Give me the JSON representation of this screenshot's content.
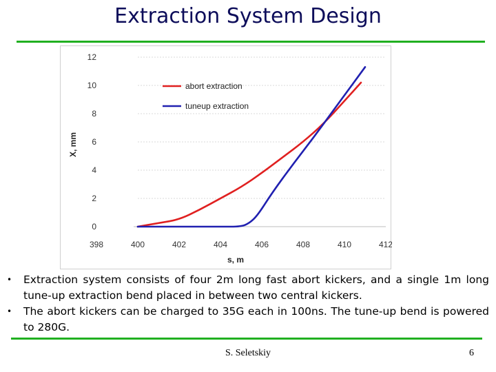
{
  "slide": {
    "title": "Extraction System Design",
    "bullets": [
      "Extraction system consists of four 2m long fast abort kickers, and a single 1m long tune-up extraction bend placed in between two central kickers.",
      "The abort kickers can be charged to 35G each in 100ns. The tune-up bend is powered to 280G."
    ],
    "bullet_glyph": "•",
    "footer_author": "S. Seletskiy",
    "page_number": "6",
    "accent_color": "#20b020",
    "title_color": "#0d0d5a"
  },
  "chart_data": {
    "type": "line",
    "xlabel": "s, m",
    "ylabel": "X, mm",
    "xlim": [
      398,
      412
    ],
    "ylim": [
      0,
      12
    ],
    "xticks": [
      398,
      400,
      402,
      404,
      406,
      408,
      410,
      412
    ],
    "yticks": [
      0,
      2,
      4,
      6,
      8,
      10,
      12
    ],
    "grid": "horizontal dashed",
    "legend_position": "top-left inside",
    "series": [
      {
        "name": "abort extraction",
        "color": "#e02020",
        "x": [
          400.0,
          401.0,
          402.0,
          403.0,
          404.0,
          405.0,
          406.0,
          407.0,
          408.0,
          409.0,
          410.0,
          410.8
        ],
        "y": [
          0.0,
          0.25,
          0.5,
          1.2,
          2.0,
          2.8,
          3.8,
          4.9,
          6.0,
          7.3,
          8.9,
          10.2
        ]
      },
      {
        "name": "tuneup extraction",
        "color": "#2020b0",
        "x": [
          400.0,
          401.0,
          402.0,
          403.0,
          404.0,
          405.0,
          405.4,
          405.8,
          406.5,
          407.5,
          408.5,
          409.5,
          410.3,
          411.0
        ],
        "y": [
          0.0,
          0.0,
          0.0,
          0.0,
          0.0,
          0.0,
          0.25,
          0.8,
          2.4,
          4.4,
          6.3,
          8.3,
          9.9,
          11.3
        ]
      }
    ]
  }
}
